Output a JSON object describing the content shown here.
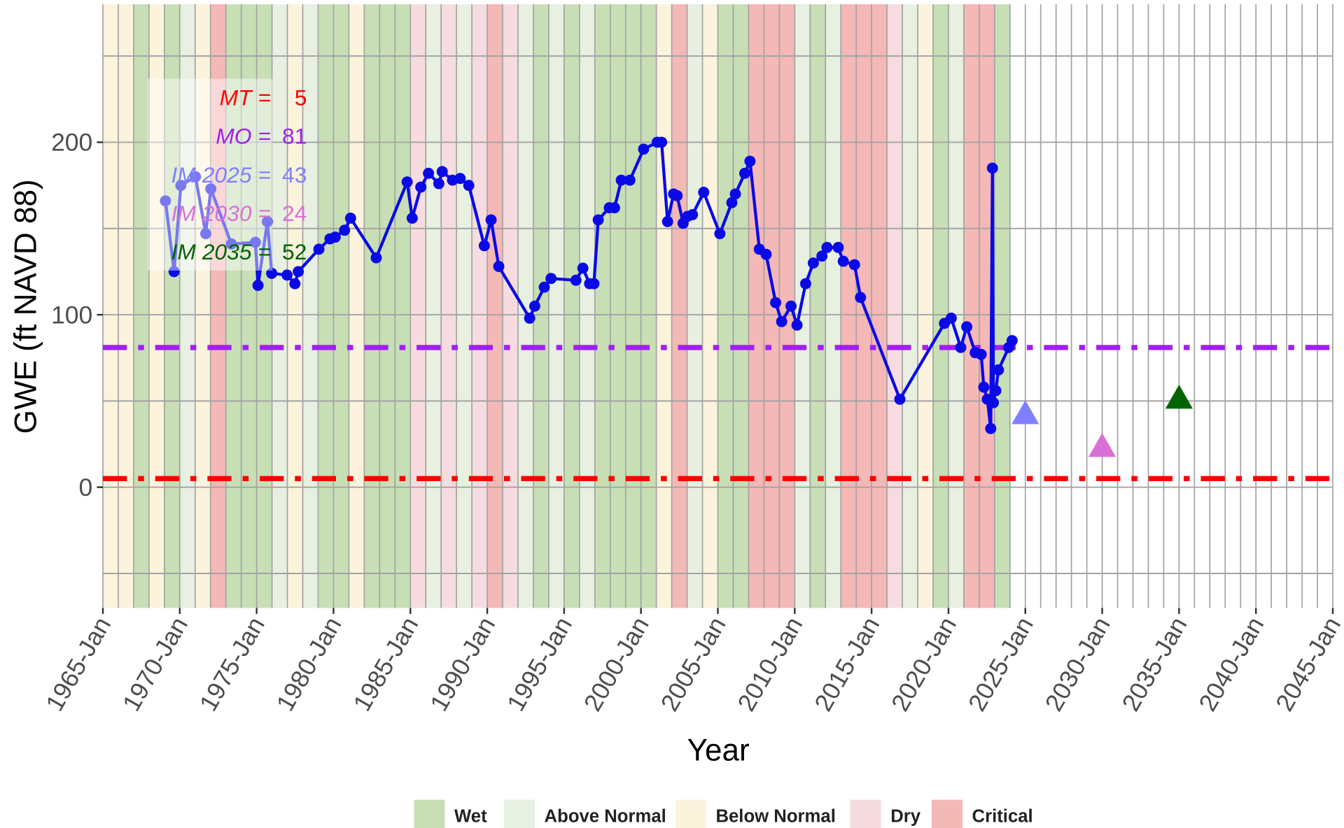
{
  "chart_data": {
    "type": "line",
    "xlabel": "Year",
    "ylabel": "GWE (ft NAVD 88)",
    "xlim": [
      1965,
      2045
    ],
    "ylim": [
      -70,
      280
    ],
    "xticks": [
      {
        "value": 1965,
        "label": "1965-Jan"
      },
      {
        "value": 1970,
        "label": "1970-Jan"
      },
      {
        "value": 1975,
        "label": "1975-Jan"
      },
      {
        "value": 1980,
        "label": "1980-Jan"
      },
      {
        "value": 1985,
        "label": "1985-Jan"
      },
      {
        "value": 1990,
        "label": "1990-Jan"
      },
      {
        "value": 1995,
        "label": "1995-Jan"
      },
      {
        "value": 2000,
        "label": "2000-Jan"
      },
      {
        "value": 2005,
        "label": "2005-Jan"
      },
      {
        "value": 2010,
        "label": "2010-Jan"
      },
      {
        "value": 2015,
        "label": "2015-Jan"
      },
      {
        "value": 2020,
        "label": "2020-Jan"
      },
      {
        "value": 2025,
        "label": "2025-Jan"
      },
      {
        "value": 2030,
        "label": "2030-Jan"
      },
      {
        "value": 2035,
        "label": "2035-Jan"
      },
      {
        "value": 2040,
        "label": "2040-Jan"
      },
      {
        "value": 2045,
        "label": "2045-Jan"
      }
    ],
    "xminorticks": [
      1966,
      1967,
      1968,
      1969,
      1971,
      1972,
      1973,
      1974,
      1976,
      1977,
      1978,
      1979,
      1981,
      1982,
      1983,
      1984,
      1986,
      1987,
      1988,
      1989,
      1991,
      1992,
      1993,
      1994,
      1996,
      1997,
      1998,
      1999,
      2001,
      2002,
      2003,
      2004,
      2006,
      2007,
      2008,
      2009,
      2011,
      2012,
      2013,
      2014,
      2016,
      2017,
      2018,
      2019,
      2021,
      2022,
      2023,
      2024,
      2026,
      2027,
      2028,
      2029,
      2031,
      2032,
      2033,
      2034,
      2036,
      2037,
      2038,
      2039,
      2041,
      2042,
      2043,
      2044
    ],
    "yticks": [
      0,
      100,
      200
    ],
    "yminorticks": [
      -50,
      50,
      150,
      250
    ],
    "grid": true,
    "legend": [
      {
        "name": "Wet",
        "color": "#c8dfb6"
      },
      {
        "name": "Above Normal",
        "color": "#e7f0e1"
      },
      {
        "name": "Below Normal",
        "color": "#fbf3dc"
      },
      {
        "name": "Dry",
        "color": "#f6dcdf"
      },
      {
        "name": "Critical",
        "color": "#f4b8b7"
      }
    ],
    "band_years": [
      1965,
      1966,
      1967,
      1968,
      1969,
      1970,
      1971,
      1972,
      1973,
      1974,
      1975,
      1976,
      1977,
      1978,
      1979,
      1980,
      1981,
      1982,
      1983,
      1984,
      1985,
      1986,
      1987,
      1988,
      1989,
      1990,
      1991,
      1992,
      1993,
      1994,
      1995,
      1996,
      1997,
      1998,
      1999,
      2000,
      2001,
      2002,
      2003,
      2004,
      2005,
      2006,
      2007,
      2008,
      2009,
      2010,
      2011,
      2012,
      2013,
      2014,
      2015,
      2016,
      2017,
      2018,
      2019,
      2020,
      2021,
      2022,
      2023
    ],
    "band_types": [
      "Below Normal",
      "Below Normal",
      "Wet",
      "Below Normal",
      "Wet",
      "Above Normal",
      "Below Normal",
      "Critical",
      "Wet",
      "Wet",
      "Wet",
      "Above Normal",
      "Below Normal",
      "Above Normal",
      "Wet",
      "Wet",
      "Below Normal",
      "Wet",
      "Wet",
      "Wet",
      "Dry",
      "Above Normal",
      "Dry",
      "Above Normal",
      "Dry",
      "Critical",
      "Dry",
      "Above Normal",
      "Wet",
      "Above Normal",
      "Wet",
      "Above Normal",
      "Wet",
      "Wet",
      "Wet",
      "Wet",
      "Below Normal",
      "Critical",
      "Above Normal",
      "Below Normal",
      "Wet",
      "Wet",
      "Critical",
      "Critical",
      "Critical",
      "Above Normal",
      "Wet",
      "Above Normal",
      "Critical",
      "Critical",
      "Critical",
      "Dry",
      "Above Normal",
      "Below Normal",
      "Wet",
      "Above Normal",
      "Critical",
      "Critical",
      "Wet"
    ],
    "series": [
      {
        "color": "#0a0ae6",
        "x": [
          1969.07,
          1969.63,
          1970.07,
          1971.02,
          1971.69,
          1972.02,
          1973.36,
          1974.92,
          1975.09,
          1975.7,
          1975.98,
          1976.98,
          1977.49,
          1977.71,
          1979.05,
          1979.77,
          1980.11,
          1980.72,
          1981.11,
          1982.78,
          1984.79,
          1985.12,
          1985.68,
          1986.18,
          1986.85,
          1987.07,
          1987.74,
          1988.24,
          1988.8,
          1989.81,
          1990.25,
          1990.75,
          1992.76,
          1993.09,
          1993.71,
          1994.15,
          1995.77,
          1996.22,
          1996.66,
          1996.94,
          1997.22,
          1997.94,
          1998.28,
          1998.72,
          1999.28,
          2000.17,
          2001.06,
          2001.34,
          2001.73,
          2002.12,
          2002.35,
          2002.74,
          2003.02,
          2003.35,
          2004.08,
          2005.13,
          2005.91,
          2006.14,
          2006.75,
          2007.09,
          2007.7,
          2008.14,
          2008.76,
          2009.15,
          2009.76,
          2010.15,
          2010.71,
          2011.21,
          2011.77,
          2012.1,
          2012.83,
          2013.16,
          2013.89,
          2014.28,
          2016.84,
          2019.74,
          2020.18,
          2020.8,
          2021.19,
          2021.74,
          2022.13,
          2022.3,
          2022.53,
          2022.75,
          2022.86,
          2022.92,
          2023.08,
          2023.25,
          2023.92,
          2024.14
        ],
        "values": [
          166,
          125,
          175,
          180,
          147,
          173,
          141,
          142,
          117,
          154,
          124,
          123,
          118,
          125,
          138,
          144,
          145,
          149,
          156,
          133,
          177,
          156,
          174,
          182,
          176,
          183,
          178,
          179,
          175,
          140,
          155,
          128,
          98,
          105,
          116,
          121,
          120,
          127,
          118,
          118,
          155,
          162,
          162,
          178,
          178,
          196,
          200,
          200,
          154,
          170,
          169,
          153,
          157,
          158,
          171,
          147,
          165,
          170,
          182,
          189,
          138,
          135,
          107,
          96,
          105,
          94,
          118,
          130,
          134,
          139,
          139,
          131,
          129,
          110,
          51,
          95,
          98,
          81,
          93,
          78,
          77,
          58,
          51,
          34,
          185,
          49,
          56,
          68,
          81,
          85
        ]
      }
    ],
    "thresholds": [
      {
        "label": "MT =",
        "value": 5,
        "color": "#ff0000"
      },
      {
        "label": "MO =",
        "value": 81,
        "color": "#a020f0"
      },
      {
        "label": "IM 2025 =",
        "value": 43,
        "color": "#8080ff",
        "x": 2025
      },
      {
        "label": "IM 2030 =",
        "value": 24,
        "color": "#da70d6",
        "x": 2030
      },
      {
        "label": "IM 2035 =",
        "value": 52,
        "color": "#006400",
        "x": 2035
      }
    ]
  }
}
